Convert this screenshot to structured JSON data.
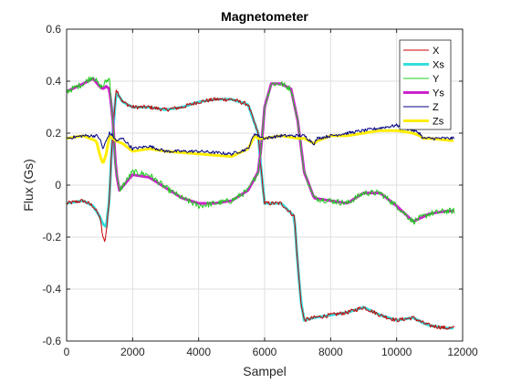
{
  "chart_data": {
    "type": "line",
    "title": "Magnetometer",
    "xlabel": "Sampel",
    "ylabel": "Flux (Gs)",
    "xlim": [
      0,
      12000
    ],
    "ylim": [
      -0.6,
      0.6
    ],
    "xticks": [
      0,
      2000,
      4000,
      6000,
      8000,
      10000,
      12000
    ],
    "xtick_labels": [
      "0",
      "2000",
      "4000",
      "6000",
      "8000",
      "10000",
      "12000"
    ],
    "yticks": [
      -0.6,
      -0.4,
      -0.2,
      0,
      0.2,
      0.4,
      0.6
    ],
    "ytick_labels": [
      "-0.6",
      "-0.4",
      "-0.2",
      "0",
      "0.2",
      "0.4",
      "0.6"
    ],
    "grid": true,
    "legend_position": "top-right",
    "series": [
      {
        "name": "X",
        "color": "#cc0000",
        "width": 1,
        "noise": 0.008,
        "x": [
          0,
          500,
          800,
          1000,
          1100,
          1150,
          1200,
          1300,
          1350,
          1400,
          1500,
          1700,
          2000,
          2500,
          3000,
          3500,
          4000,
          4500,
          5000,
          5500,
          5800,
          5900,
          6000,
          6500,
          6900,
          7000,
          7100,
          7200,
          7500,
          8000,
          8500,
          9000,
          9500,
          10000,
          10500,
          10800,
          11000,
          11500,
          11750
        ],
        "y": [
          -0.07,
          -0.06,
          -0.08,
          -0.12,
          -0.2,
          -0.22,
          -0.18,
          -0.05,
          0.1,
          0.2,
          0.37,
          0.32,
          0.3,
          0.3,
          0.29,
          0.3,
          0.32,
          0.33,
          0.33,
          0.31,
          0.2,
          0.05,
          -0.07,
          -0.07,
          -0.12,
          -0.3,
          -0.45,
          -0.52,
          -0.51,
          -0.5,
          -0.49,
          -0.47,
          -0.5,
          -0.52,
          -0.51,
          -0.53,
          -0.54,
          -0.55,
          -0.55
        ]
      },
      {
        "name": "Xs",
        "color": "#33dddd",
        "width": 3,
        "noise": 0,
        "x": [
          0,
          500,
          800,
          1000,
          1100,
          1200,
          1300,
          1350,
          1400,
          1500,
          1700,
          2000,
          2500,
          3000,
          3500,
          4000,
          4500,
          5000,
          5500,
          5800,
          5900,
          6000,
          6500,
          6900,
          7000,
          7100,
          7200,
          7500,
          8000,
          8500,
          9000,
          9500,
          10000,
          10500,
          10800,
          11000,
          11500,
          11750
        ],
        "y": [
          -0.07,
          -0.06,
          -0.08,
          -0.12,
          -0.15,
          -0.16,
          -0.05,
          0.1,
          0.2,
          0.36,
          0.32,
          0.3,
          0.3,
          0.29,
          0.3,
          0.32,
          0.33,
          0.33,
          0.31,
          0.2,
          0.05,
          -0.07,
          -0.07,
          -0.12,
          -0.3,
          -0.45,
          -0.52,
          -0.51,
          -0.5,
          -0.49,
          -0.47,
          -0.5,
          -0.52,
          -0.51,
          -0.53,
          -0.54,
          -0.55,
          -0.55
        ]
      },
      {
        "name": "Y",
        "color": "#22cc22",
        "width": 1,
        "noise": 0.012,
        "x": [
          0,
          500,
          800,
          1000,
          1100,
          1200,
          1300,
          1400,
          1500,
          1600,
          2000,
          2500,
          3000,
          3500,
          4000,
          4500,
          5000,
          5500,
          5800,
          5900,
          6000,
          6200,
          6500,
          6800,
          7000,
          7200,
          7500,
          8000,
          8500,
          9000,
          9500,
          10000,
          10500,
          11000,
          11500,
          11750
        ],
        "y": [
          0.36,
          0.39,
          0.42,
          0.38,
          0.38,
          0.4,
          0.41,
          0.25,
          0.05,
          -0.02,
          0.05,
          0.04,
          -0.01,
          -0.05,
          -0.08,
          -0.07,
          -0.06,
          -0.02,
          0.05,
          0.15,
          0.3,
          0.39,
          0.39,
          0.37,
          0.25,
          0.05,
          -0.05,
          -0.06,
          -0.07,
          -0.03,
          -0.03,
          -0.08,
          -0.14,
          -0.11,
          -0.1,
          -0.1
        ]
      },
      {
        "name": "Ys",
        "color": "#cc22cc",
        "width": 3,
        "noise": 0,
        "x": [
          0,
          500,
          800,
          1000,
          1100,
          1200,
          1300,
          1400,
          1500,
          1600,
          2000,
          2500,
          3000,
          3500,
          4000,
          4500,
          5000,
          5500,
          5800,
          5900,
          6000,
          6200,
          6500,
          6800,
          7000,
          7200,
          7500,
          8000,
          8500,
          9000,
          9500,
          10000,
          10500,
          11000,
          11500,
          11750
        ],
        "y": [
          0.36,
          0.39,
          0.41,
          0.38,
          0.37,
          0.38,
          0.37,
          0.25,
          0.05,
          -0.02,
          0.04,
          0.03,
          -0.01,
          -0.05,
          -0.07,
          -0.07,
          -0.06,
          -0.02,
          0.05,
          0.15,
          0.3,
          0.39,
          0.39,
          0.37,
          0.25,
          0.05,
          -0.05,
          -0.06,
          -0.07,
          -0.03,
          -0.03,
          -0.08,
          -0.14,
          -0.11,
          -0.1,
          -0.1
        ]
      },
      {
        "name": "Z",
        "color": "#000080",
        "width": 1,
        "noise": 0.006,
        "x": [
          0,
          500,
          900,
          1000,
          1100,
          1200,
          1300,
          1400,
          1500,
          1700,
          2000,
          2500,
          3000,
          4000,
          5000,
          5500,
          5700,
          5800,
          6000,
          6500,
          7000,
          7200,
          7500,
          7600,
          8000,
          8500,
          9000,
          9500,
          10000,
          10500,
          10700,
          10800,
          11000,
          11750
        ],
        "y": [
          0.18,
          0.19,
          0.19,
          0.18,
          0.14,
          0.17,
          0.2,
          0.19,
          0.17,
          0.18,
          0.14,
          0.15,
          0.13,
          0.13,
          0.12,
          0.14,
          0.2,
          0.19,
          0.18,
          0.19,
          0.19,
          0.19,
          0.16,
          0.18,
          0.19,
          0.2,
          0.21,
          0.22,
          0.23,
          0.21,
          0.2,
          0.18,
          0.18,
          0.18
        ]
      },
      {
        "name": "Zs",
        "color": "#ffee00",
        "width": 3,
        "noise": 0,
        "x": [
          0,
          500,
          900,
          1000,
          1100,
          1200,
          1300,
          1400,
          1500,
          1700,
          2000,
          2500,
          3000,
          4000,
          5000,
          5500,
          5700,
          5800,
          6000,
          6500,
          7000,
          7200,
          7500,
          7600,
          8000,
          8500,
          9000,
          9500,
          10000,
          10500,
          10700,
          10800,
          11000,
          11750
        ],
        "y": [
          0.18,
          0.19,
          0.17,
          0.12,
          0.08,
          0.12,
          0.19,
          0.18,
          0.17,
          0.16,
          0.13,
          0.14,
          0.13,
          0.12,
          0.11,
          0.14,
          0.19,
          0.18,
          0.18,
          0.19,
          0.18,
          0.18,
          0.16,
          0.17,
          0.19,
          0.19,
          0.2,
          0.21,
          0.21,
          0.2,
          0.19,
          0.18,
          0.18,
          0.17
        ]
      }
    ]
  }
}
